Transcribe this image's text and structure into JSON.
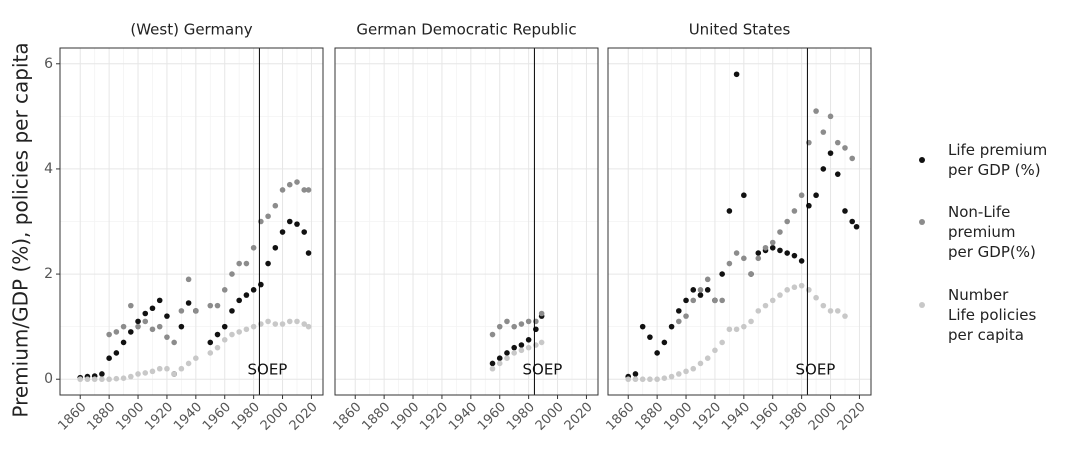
{
  "chart_data": {
    "type": "scatter",
    "ylabel": "Premium/GDP (%), policies per capita",
    "xlim": [
      1846,
      2028
    ],
    "ylim": [
      -0.3,
      6.3
    ],
    "xticks": [
      1860,
      1880,
      1900,
      1920,
      1940,
      1960,
      1980,
      2000,
      2020
    ],
    "yticks": [
      0,
      2,
      4,
      6
    ],
    "grid": true,
    "legend": "right",
    "annotation": {
      "text": "SOEP",
      "x": 1984
    },
    "series": [
      {
        "name": "Life premium\nper GDP (%)",
        "color": "#111111"
      },
      {
        "name": "Non-Life\npremium\nper GDP(%)",
        "color": "#8c8c8c"
      },
      {
        "name": "Number\nLife policies\nper capita",
        "color": "#c8c8c8"
      }
    ],
    "facets": [
      {
        "title": "(West) Germany",
        "x": [
          1860,
          1865,
          1870,
          1875,
          1880,
          1885,
          1890,
          1895,
          1900,
          1905,
          1910,
          1915,
          1920,
          1925,
          1930,
          1935,
          1940,
          1945,
          1950,
          1955,
          1960,
          1965,
          1970,
          1975,
          1980,
          1985,
          1990,
          1995,
          2000,
          2005,
          2010,
          2015,
          2018
        ],
        "values": [
          [
            0.03,
            0.05,
            0.06,
            0.1,
            0.4,
            0.5,
            0.7,
            0.9,
            1.1,
            1.25,
            1.35,
            1.5,
            1.2,
            0.1,
            1.0,
            1.45,
            1.3,
            null,
            0.7,
            0.85,
            1.0,
            1.3,
            1.5,
            1.6,
            1.7,
            1.8,
            2.2,
            2.5,
            2.8,
            3.0,
            2.95,
            2.8,
            2.4
          ],
          [
            null,
            null,
            null,
            null,
            0.85,
            0.9,
            1.0,
            1.4,
            1.0,
            1.1,
            0.95,
            1.0,
            0.8,
            0.7,
            1.3,
            1.9,
            1.3,
            null,
            1.4,
            1.4,
            1.7,
            2.0,
            2.2,
            2.2,
            2.5,
            3.0,
            3.1,
            3.3,
            3.6,
            3.7,
            3.75,
            3.6,
            3.6
          ],
          [
            0,
            0,
            0,
            0,
            0,
            0.01,
            0.02,
            0.05,
            0.1,
            0.12,
            0.15,
            0.2,
            0.2,
            0.1,
            0.2,
            0.3,
            0.4,
            null,
            0.5,
            0.6,
            0.75,
            0.85,
            0.9,
            0.95,
            1.0,
            1.05,
            1.1,
            1.05,
            1.05,
            1.1,
            1.1,
            1.05,
            1.0
          ]
        ]
      },
      {
        "title": "German Democratic Republic",
        "x": [
          1955,
          1960,
          1965,
          1970,
          1975,
          1980,
          1985,
          1989
        ],
        "values": [
          [
            0.3,
            0.4,
            0.5,
            0.6,
            0.65,
            0.75,
            0.95,
            1.2
          ],
          [
            0.85,
            1.0,
            1.1,
            1.0,
            1.05,
            1.1,
            1.1,
            1.25
          ],
          [
            0.2,
            0.3,
            0.4,
            0.5,
            0.55,
            0.6,
            0.65,
            0.7
          ]
        ]
      },
      {
        "title": "United States",
        "x": [
          1860,
          1865,
          1870,
          1875,
          1880,
          1885,
          1890,
          1895,
          1900,
          1905,
          1910,
          1915,
          1920,
          1925,
          1930,
          1935,
          1940,
          1945,
          1950,
          1955,
          1960,
          1965,
          1970,
          1975,
          1980,
          1985,
          1990,
          1995,
          2000,
          2005,
          2010,
          2015,
          2018
        ],
        "values": [
          [
            0.05,
            0.1,
            1.0,
            0.8,
            0.5,
            0.7,
            1.0,
            1.3,
            1.5,
            1.7,
            1.6,
            1.7,
            1.5,
            2.0,
            3.2,
            5.8,
            3.5,
            2.0,
            2.4,
            2.45,
            2.5,
            2.45,
            2.4,
            2.35,
            2.25,
            3.3,
            3.5,
            4.0,
            4.3,
            3.9,
            3.2,
            3.0,
            2.9
          ],
          [
            null,
            null,
            null,
            null,
            null,
            null,
            null,
            1.1,
            1.2,
            1.5,
            1.7,
            1.9,
            1.5,
            1.5,
            2.2,
            2.4,
            2.3,
            2.0,
            2.3,
            2.5,
            2.6,
            2.8,
            3.0,
            3.2,
            3.5,
            4.5,
            5.1,
            4.7,
            5.0,
            4.5,
            4.4,
            4.2,
            null
          ],
          [
            0,
            0,
            0,
            0,
            0,
            0.02,
            0.05,
            0.1,
            0.15,
            0.2,
            0.3,
            0.4,
            0.55,
            0.7,
            0.95,
            0.95,
            1.0,
            1.1,
            1.3,
            1.4,
            1.5,
            1.6,
            1.7,
            1.75,
            1.78,
            1.7,
            1.55,
            1.4,
            1.3,
            1.3,
            1.2,
            null,
            null
          ]
        ]
      }
    ]
  }
}
